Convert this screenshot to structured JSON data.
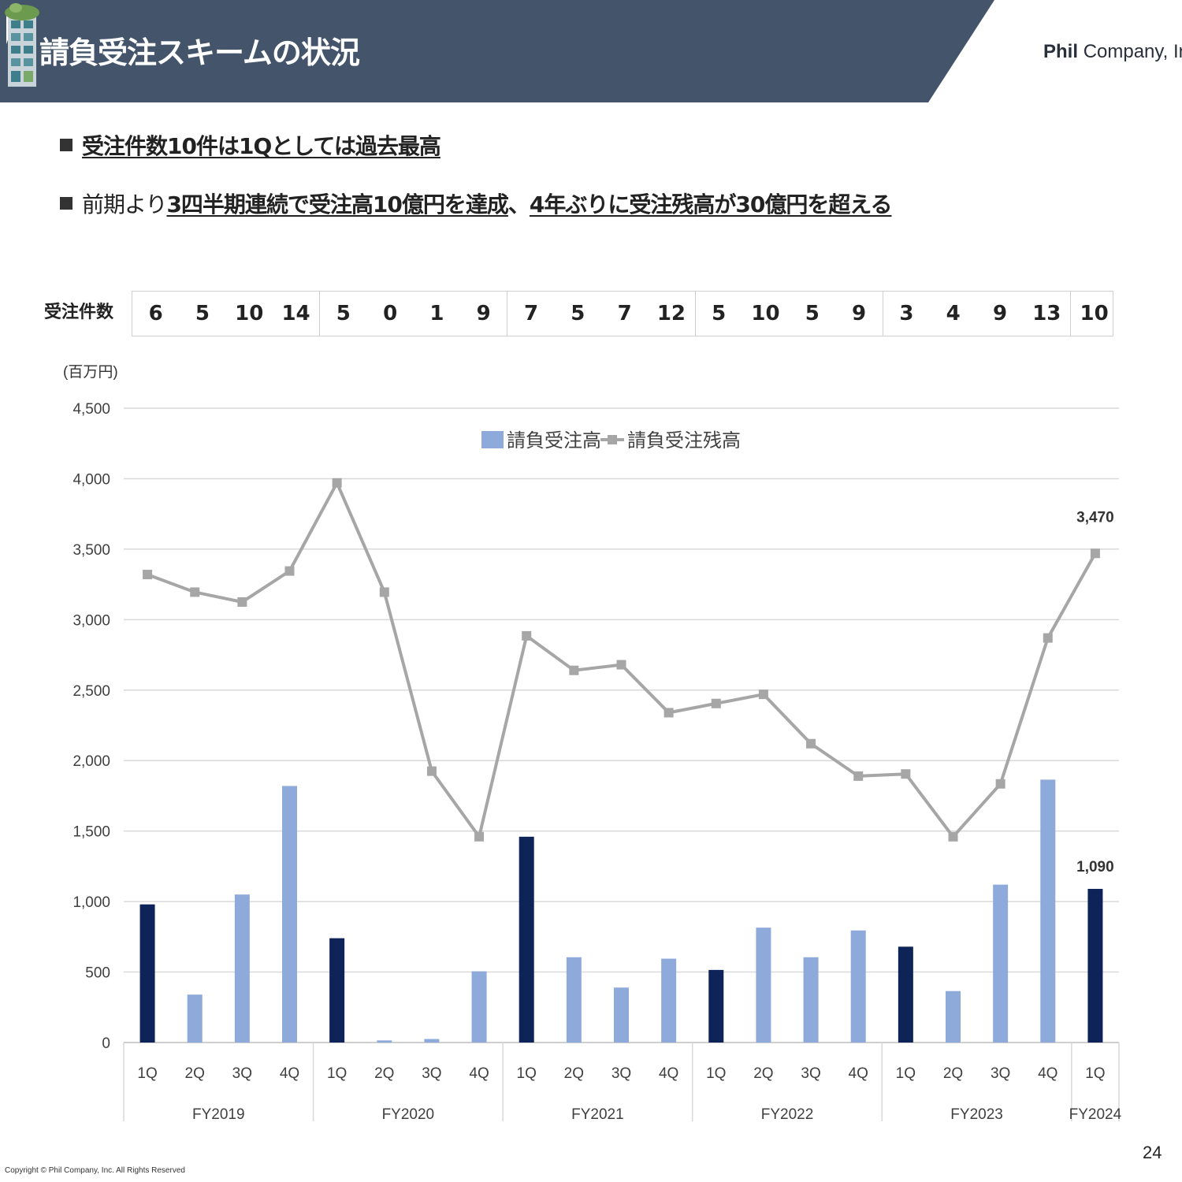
{
  "header": {
    "title": "請負受注スキームの状況",
    "logo_brand": "Phil",
    "logo_suffix": "Company, Inc",
    "band_color": "#44546a"
  },
  "bullets": [
    {
      "underlined": "受注件数10件は1Qとしては過去最高"
    },
    {
      "plain": "前期より",
      "underlined_1": "3四半期連続で受注高10億円を達成",
      "middle": "、",
      "underlined_2": "4年ぶりに受注残高が30億円を超える"
    }
  ],
  "order_counts": {
    "label": "受注件数",
    "values": [
      "6",
      "5",
      "10",
      "14",
      "5",
      "0",
      "1",
      "9",
      "7",
      "5",
      "7",
      "12",
      "5",
      "10",
      "5",
      "9",
      "3",
      "4",
      "9",
      "13",
      "10"
    ]
  },
  "chart_data": {
    "type": "bar",
    "unit_label": "(百万円)",
    "ylim": [
      0,
      4500
    ],
    "yticks": [
      "0",
      "500",
      "1,000",
      "1,500",
      "2,000",
      "2,500",
      "3,000",
      "3,500",
      "4,000",
      "4,500"
    ],
    "grid": true,
    "legend_position": "top-center",
    "categories": [
      "1Q",
      "2Q",
      "3Q",
      "4Q",
      "1Q",
      "2Q",
      "3Q",
      "4Q",
      "1Q",
      "2Q",
      "3Q",
      "4Q",
      "1Q",
      "2Q",
      "3Q",
      "4Q",
      "1Q",
      "2Q",
      "3Q",
      "4Q",
      "1Q"
    ],
    "groups": [
      {
        "label": "FY2019",
        "span": 4
      },
      {
        "label": "FY2020",
        "span": 4
      },
      {
        "label": "FY2021",
        "span": 4
      },
      {
        "label": "FY2022",
        "span": 4
      },
      {
        "label": "FY2023",
        "span": 4
      },
      {
        "label": "FY2024",
        "span": 1
      }
    ],
    "series": [
      {
        "name": "請負受注高",
        "kind": "bar",
        "color_q1": "#0e2459",
        "color": "#8eaadb",
        "values": [
          980,
          340,
          1050,
          1820,
          740,
          15,
          25,
          505,
          1460,
          605,
          390,
          595,
          515,
          815,
          605,
          795,
          680,
          365,
          1120,
          1865,
          1090
        ]
      },
      {
        "name": "請負受注残高",
        "kind": "line",
        "color": "#a6a6a6",
        "values": [
          3320,
          3195,
          3125,
          3345,
          3970,
          3195,
          1925,
          1460,
          2885,
          2640,
          2680,
          2340,
          2405,
          2470,
          2120,
          1890,
          1905,
          1460,
          1835,
          2870,
          3470
        ]
      }
    ],
    "data_labels": [
      {
        "series": "請負受注残高",
        "index": 20,
        "text": "3,470"
      },
      {
        "series": "請負受注高",
        "index": 20,
        "text": "1,090"
      }
    ]
  },
  "footer": {
    "copyright": "Copyright © Phil Company, Inc.  All Rights Reserved",
    "page_number": "24"
  }
}
